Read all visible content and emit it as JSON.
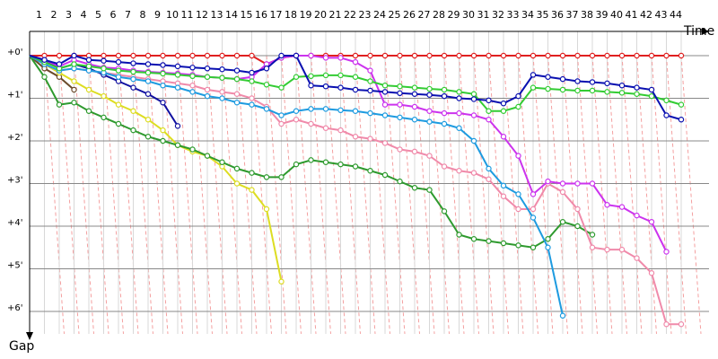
{
  "chart_data": {
    "type": "line",
    "x_label": "Time",
    "y_label": "Gap",
    "x": [
      0,
      1,
      2,
      3,
      4,
      5,
      6,
      7,
      8,
      9,
      10,
      11,
      12,
      13,
      14,
      15,
      16,
      17,
      18,
      19,
      20,
      21,
      22,
      23,
      24,
      25,
      26,
      27,
      28,
      29,
      30,
      31,
      32,
      33,
      34,
      35,
      36,
      37,
      38,
      39,
      40,
      41,
      42,
      43,
      44
    ],
    "xlim": [
      0,
      44
    ],
    "xticks": [
      1,
      2,
      3,
      4,
      5,
      6,
      7,
      8,
      9,
      10,
      11,
      12,
      13,
      14,
      15,
      16,
      17,
      18,
      19,
      20,
      21,
      22,
      23,
      24,
      25,
      26,
      27,
      28,
      29,
      30,
      31,
      32,
      33,
      34,
      35,
      36,
      37,
      38,
      39,
      40,
      41,
      42,
      43,
      44
    ],
    "ylim": [
      0,
      6
    ],
    "yticks": [
      {
        "value": 0,
        "label": "+0'"
      },
      {
        "value": 1,
        "label": "+1'"
      },
      {
        "value": 2,
        "label": "+2'"
      },
      {
        "value": 3,
        "label": "+3'"
      },
      {
        "value": 4,
        "label": "+4'"
      },
      {
        "value": 5,
        "label": "+5'"
      },
      {
        "value": 6,
        "label": "+6'"
      }
    ],
    "grid": true,
    "series": [
      {
        "color": "#e02020",
        "values": [
          0,
          0,
          0,
          0,
          0,
          0,
          0,
          0,
          0,
          0,
          0,
          0,
          0,
          0,
          0,
          0,
          0.2,
          0.05,
          0,
          0,
          0,
          0,
          0,
          0,
          0,
          0,
          0,
          0,
          0,
          0,
          0,
          0,
          0,
          0,
          0,
          0,
          0,
          0,
          0,
          0,
          0,
          0,
          0,
          0,
          0
        ]
      },
      {
        "color": "#1010a0",
        "values": [
          0,
          0.1,
          0.3,
          0.2,
          0.3,
          0.45,
          0.6,
          0.75,
          0.9,
          1.1,
          1.65,
          null,
          null,
          null,
          null,
          null,
          null,
          null,
          null,
          null,
          null,
          null,
          null,
          null,
          null,
          null,
          null,
          null,
          null,
          null,
          null,
          null,
          null,
          null,
          null,
          null,
          null,
          null,
          null,
          null,
          null,
          null,
          null,
          null,
          null
        ]
      },
      {
        "color": "#6b4a2a",
        "values": [
          0,
          0.3,
          0.5,
          0.8,
          null,
          null,
          null,
          null,
          null,
          null,
          null,
          null,
          null,
          null,
          null,
          null,
          null,
          null,
          null,
          null,
          null,
          null,
          null,
          null,
          null,
          null,
          null,
          null,
          null,
          null,
          null,
          null,
          null,
          null,
          null,
          null,
          null,
          null,
          null,
          null,
          null,
          null,
          null,
          null,
          null
        ]
      },
      {
        "color": "#dddd22",
        "values": [
          0,
          0.2,
          0.4,
          0.6,
          0.8,
          0.95,
          1.15,
          1.3,
          1.5,
          1.75,
          2.1,
          2.25,
          2.35,
          2.6,
          3.0,
          3.15,
          3.6,
          5.3,
          null,
          null,
          null,
          null,
          null,
          null,
          null,
          null,
          null,
          null,
          null,
          null,
          null,
          null,
          null,
          null,
          null,
          null,
          null,
          null,
          null,
          null,
          null,
          null,
          null,
          null,
          null
        ]
      },
      {
        "color": "#2e9a2e",
        "values": [
          0,
          0.5,
          1.15,
          1.1,
          1.3,
          1.45,
          1.6,
          1.75,
          1.9,
          2.0,
          2.1,
          2.2,
          2.35,
          2.5,
          2.65,
          2.75,
          2.85,
          2.85,
          2.55,
          2.45,
          2.5,
          2.55,
          2.6,
          2.7,
          2.8,
          2.95,
          3.1,
          3.15,
          3.65,
          4.2,
          4.3,
          4.35,
          4.4,
          4.45,
          4.5,
          4.3,
          3.9,
          4.0,
          4.2,
          null,
          null,
          null,
          null,
          null,
          null
        ]
      },
      {
        "color": "#f08aaa",
        "values": [
          0,
          0.2,
          0.35,
          0.3,
          0.35,
          0.4,
          0.45,
          0.5,
          0.55,
          0.6,
          0.65,
          0.7,
          0.8,
          0.85,
          0.9,
          1.0,
          1.2,
          1.6,
          1.5,
          1.6,
          1.7,
          1.75,
          1.9,
          1.95,
          2.05,
          2.2,
          2.25,
          2.35,
          2.6,
          2.7,
          2.75,
          2.9,
          3.3,
          3.6,
          3.6,
          3.0,
          3.2,
          3.6,
          4.5,
          4.55,
          4.55,
          4.75,
          5.1,
          6.3,
          6.3
        ]
      },
      {
        "color": "#1e9be0",
        "values": [
          0,
          0.2,
          0.35,
          0.3,
          0.35,
          0.4,
          0.5,
          0.55,
          0.6,
          0.7,
          0.75,
          0.85,
          0.95,
          1.0,
          1.1,
          1.15,
          1.25,
          1.4,
          1.3,
          1.25,
          1.25,
          1.28,
          1.3,
          1.35,
          1.4,
          1.45,
          1.5,
          1.55,
          1.6,
          1.7,
          2.0,
          2.65,
          3.05,
          3.25,
          3.8,
          4.5,
          6.1,
          null,
          null,
          null,
          null,
          null,
          null,
          null,
          null
        ]
      },
      {
        "color": "#cc33ee",
        "values": [
          0,
          0.1,
          0.25,
          0.1,
          0.2,
          0.28,
          0.3,
          0.35,
          0.38,
          0.4,
          0.42,
          0.45,
          0.5,
          0.52,
          0.55,
          0.5,
          0.2,
          0.05,
          0,
          0,
          0.05,
          0.05,
          0.15,
          0.35,
          1.15,
          1.15,
          1.2,
          1.3,
          1.35,
          1.35,
          1.4,
          1.5,
          1.9,
          2.35,
          3.25,
          2.95,
          3.0,
          3.0,
          3.0,
          3.5,
          3.55,
          3.75,
          3.9,
          4.6,
          null
        ]
      },
      {
        "color": "#33cc33",
        "values": [
          0,
          0.15,
          0.3,
          0.2,
          0.25,
          0.3,
          0.35,
          0.38,
          0.4,
          0.42,
          0.45,
          0.48,
          0.5,
          0.52,
          0.55,
          0.6,
          0.68,
          0.75,
          0.5,
          0.48,
          0.46,
          0.46,
          0.5,
          0.6,
          0.7,
          0.72,
          0.75,
          0.78,
          0.8,
          0.85,
          0.9,
          1.3,
          1.3,
          1.2,
          0.75,
          0.78,
          0.8,
          0.82,
          0.82,
          0.85,
          0.87,
          0.9,
          0.95,
          1.05,
          1.15
        ]
      },
      {
        "color": "#0a10b0",
        "values": [
          0,
          0.1,
          0.2,
          0,
          0.1,
          0.12,
          0.15,
          0.18,
          0.2,
          0.22,
          0.25,
          0.28,
          0.3,
          0.32,
          0.35,
          0.4,
          0.3,
          0,
          0,
          0.7,
          0.72,
          0.75,
          0.8,
          0.82,
          0.85,
          0.88,
          0.9,
          0.92,
          0.95,
          1.0,
          1.02,
          1.05,
          1.12,
          0.95,
          0.45,
          0.5,
          0.55,
          0.6,
          0.62,
          0.65,
          0.7,
          0.75,
          0.8,
          1.4,
          1.5
        ]
      }
    ]
  }
}
